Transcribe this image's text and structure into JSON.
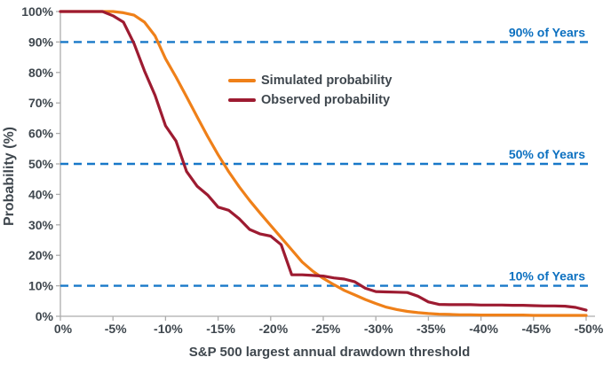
{
  "chart_data": {
    "type": "line",
    "xlabel": "S&P 500 largest annual drawdown threshold",
    "ylabel": "Probability (%)",
    "xlim": [
      0,
      -50
    ],
    "ylim": [
      0,
      100
    ],
    "grid": false,
    "legend_position": "upper-center-inside",
    "x_tick_labels": [
      "0%",
      "-5%",
      "-10%",
      "-15%",
      "-20%",
      "-25%",
      "-30%",
      "-35%",
      "-40%",
      "-45%",
      "-50%"
    ],
    "x_tick_values": [
      0,
      -5,
      -10,
      -15,
      -20,
      -25,
      -30,
      -35,
      -40,
      -45,
      -50
    ],
    "y_tick_labels": [
      "0%",
      "10%",
      "20%",
      "30%",
      "40%",
      "50%",
      "60%",
      "70%",
      "80%",
      "90%",
      "100%"
    ],
    "y_tick_values": [
      0,
      10,
      20,
      30,
      40,
      50,
      60,
      70,
      80,
      90,
      100
    ],
    "x": [
      0,
      -1,
      -2,
      -3,
      -4,
      -5,
      -6,
      -7,
      -8,
      -9,
      -10,
      -11,
      -12,
      -13,
      -14,
      -15,
      -16,
      -17,
      -18,
      -19,
      -20,
      -21,
      -22,
      -23,
      -24,
      -25,
      -26,
      -27,
      -28,
      -29,
      -30,
      -31,
      -32,
      -33,
      -34,
      -35,
      -36,
      -37,
      -38,
      -39,
      -40,
      -41,
      -42,
      -43,
      -44,
      -45,
      -46,
      -47,
      -48,
      -49,
      -50
    ],
    "series": [
      {
        "name": "Simulated probability",
        "color": "#EF8019",
        "values": [
          100,
          100,
          100,
          100,
          100,
          100,
          99.6,
          98.8,
          96.5,
          92,
          84.5,
          78.5,
          72,
          65.5,
          59,
          53,
          47.5,
          42.5,
          38,
          33.8,
          29.8,
          25.8,
          21.8,
          17.8,
          14.8,
          12.4,
          10.4,
          8.5,
          7,
          5.5,
          4.2,
          3,
          2.2,
          1.6,
          1.2,
          0.9,
          0.7,
          0.6,
          0.5,
          0.5,
          0.4,
          0.4,
          0.4,
          0.4,
          0.4,
          0.3,
          0.3,
          0.3,
          0.3,
          0.3,
          0.3
        ]
      },
      {
        "name": "Observed probability",
        "color": "#9D1B31",
        "values": [
          100,
          100,
          100,
          100,
          100,
          98.6,
          96.5,
          89.5,
          80.5,
          72.5,
          62.5,
          57.5,
          47.5,
          42.7,
          39.8,
          35.8,
          34.8,
          32,
          28.5,
          27,
          26.3,
          23.5,
          13.6,
          13.6,
          13.4,
          13.2,
          12.6,
          12.2,
          11.3,
          9.2,
          8.1,
          8,
          7.9,
          7.8,
          6.6,
          4.7,
          3.9,
          3.8,
          3.8,
          3.8,
          3.7,
          3.7,
          3.7,
          3.6,
          3.6,
          3.5,
          3.4,
          3.4,
          3.3,
          2.9,
          2
        ]
      }
    ],
    "reference_lines": [
      {
        "value": 90,
        "label": "90% of Years"
      },
      {
        "value": 50,
        "label": "50% of Years"
      },
      {
        "value": 10,
        "label": "10% of Years"
      }
    ],
    "colors": {
      "reference_line": "#1878C8",
      "reference_text": "#0C70C0",
      "axis": "#ACACAC",
      "text": "#3F474E"
    }
  }
}
